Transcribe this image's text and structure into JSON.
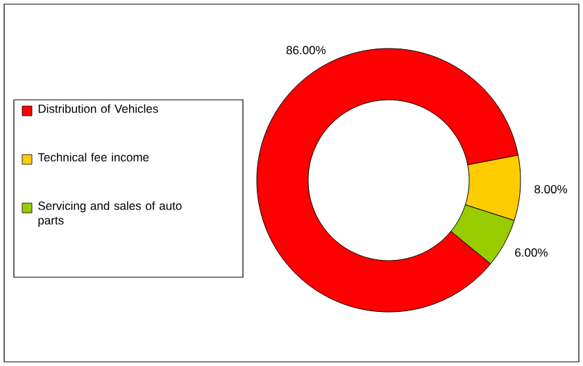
{
  "chart_data": {
    "type": "donut",
    "categories": [
      "Distribution of Vehicles",
      "Technical fee income",
      "Servicing and sales of auto parts"
    ],
    "values": [
      86,
      8,
      6
    ],
    "colors": [
      "#ff0000",
      "#ffcc00",
      "#99cc00"
    ],
    "value_labels": [
      "86.00%",
      "8.00%",
      "6.00%"
    ],
    "legend": "left"
  }
}
